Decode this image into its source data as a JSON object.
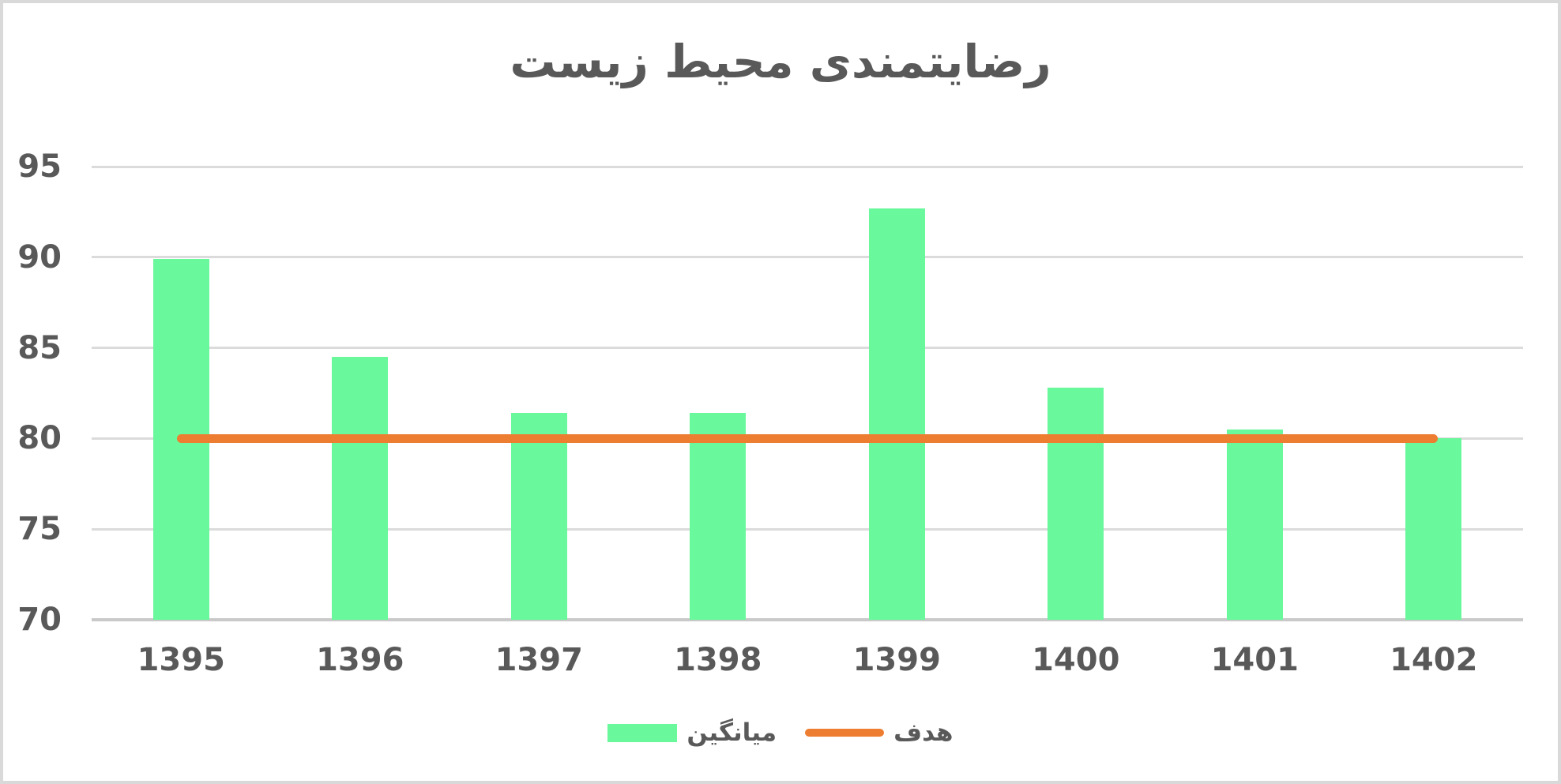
{
  "chart_data": {
    "type": "bar",
    "title": "رضایتمندی محیط زیست",
    "categories": [
      "1395",
      "1396",
      "1397",
      "1398",
      "1399",
      "1400",
      "1401",
      "1402"
    ],
    "series": [
      {
        "name": "میانگین",
        "type": "bar",
        "color": "#69f89b",
        "values": [
          89.9,
          84.5,
          81.4,
          81.4,
          92.7,
          82.8,
          80.5,
          80
        ]
      },
      {
        "name": "هدف",
        "type": "line",
        "color": "#ed7d31",
        "values": [
          80,
          80,
          80,
          80,
          80,
          80,
          80,
          80
        ]
      }
    ],
    "ylim": [
      70,
      95
    ],
    "yticks": [
      95,
      90,
      85,
      80,
      75,
      70
    ],
    "grid": true,
    "legend_position": "bottom",
    "colors": {
      "text": "#595959",
      "gridline": "#dbdbdb",
      "axis_line": "#c9c9c9",
      "frame_border": "#d9d9d9",
      "background": "#ffffff"
    }
  }
}
